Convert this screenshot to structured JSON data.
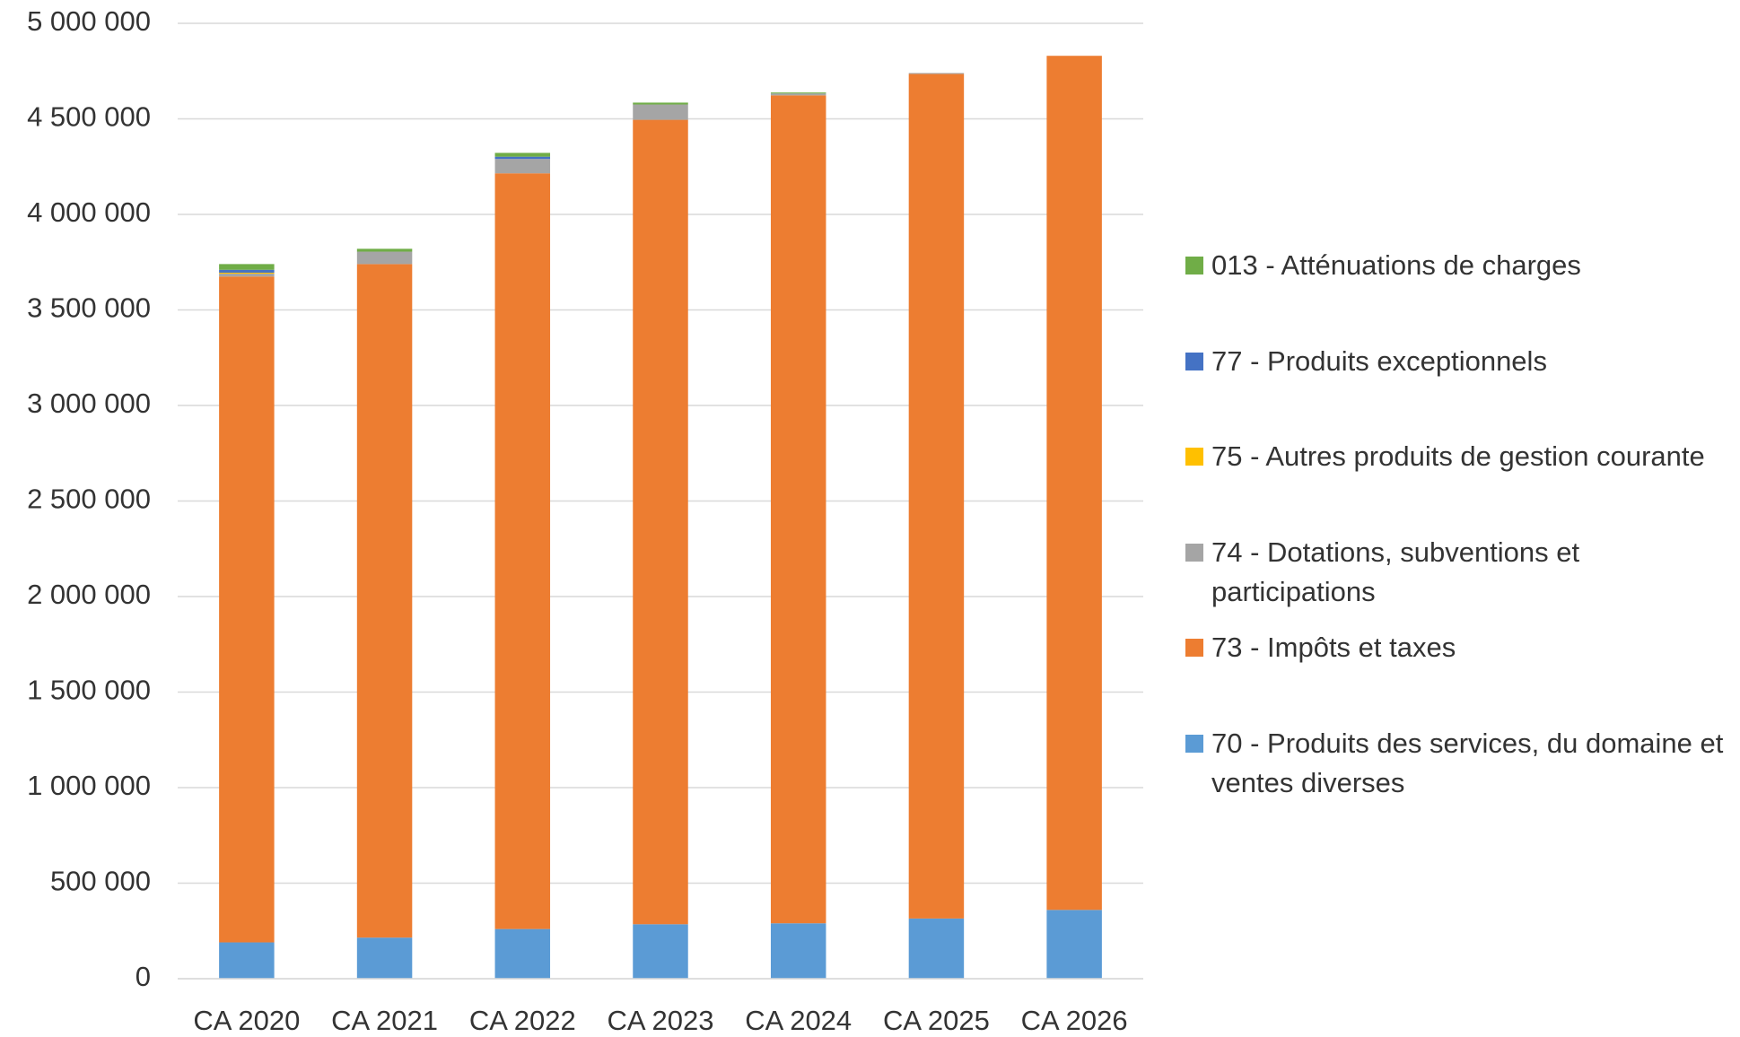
{
  "chart_data": {
    "type": "stacked-bar",
    "categories": [
      "CA 2020",
      "CA 2021",
      "CA 2022",
      "CA 2023",
      "CA 2024",
      "CA 2025",
      "CA 2026"
    ],
    "series": [
      {
        "name": "70 - Produits des services, du domaine et ventes diverses",
        "color": "#5b9bd5",
        "values": [
          190000,
          215000,
          260000,
          285000,
          290000,
          315000,
          360000
        ]
      },
      {
        "name": "73 - Impôts et taxes",
        "color": "#ed7d31",
        "values": [
          3485000,
          3525000,
          3955000,
          4210000,
          4333000,
          4420000,
          4470000
        ]
      },
      {
        "name": "74 - Dotations, subventions et participations",
        "color": "#a5a5a5",
        "values": [
          15000,
          65000,
          75000,
          80000,
          10000,
          5000,
          0
        ]
      },
      {
        "name": "75 - Autres produits de gestion courante",
        "color": "#ffc000",
        "values": [
          5000,
          0,
          0,
          0,
          0,
          0,
          0
        ]
      },
      {
        "name": "77 - Produits exceptionnels",
        "color": "#4472c4",
        "values": [
          15000,
          0,
          12000,
          0,
          0,
          0,
          0
        ]
      },
      {
        "name": "013 - Atténuations de charges",
        "color": "#70ad47",
        "values": [
          30000,
          15000,
          20000,
          10000,
          5000,
          0,
          0
        ]
      }
    ],
    "ylim": [
      0,
      5000000
    ],
    "yticks": [
      0,
      {
        "value": 500000,
        "label": "500 000"
      },
      {
        "value": 1000000,
        "label": "1 000 000"
      },
      {
        "value": 1500000,
        "label": "1 500 000"
      },
      {
        "value": 2000000,
        "label": "2 000 000"
      },
      {
        "value": 2500000,
        "label": "2 500 000"
      },
      {
        "value": 3000000,
        "label": "3 000 000"
      },
      {
        "value": 3500000,
        "label": "3 500 000"
      },
      {
        "value": 4000000,
        "label": "4 000 000"
      },
      {
        "value": 4500000,
        "label": "4 500 000"
      },
      {
        "value": 5000000,
        "label": "5 000 000"
      }
    ],
    "grid": true,
    "legend": "right"
  }
}
